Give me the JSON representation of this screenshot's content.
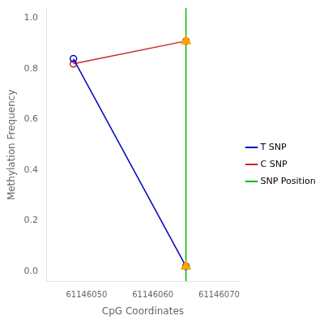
{
  "chart_data": {
    "type": "line",
    "xlabel": "CpG Coordinates",
    "ylabel": "Methylation Frequency",
    "xlim": [
      61146044,
      61146073
    ],
    "ylim": [
      -0.04,
      1.04
    ],
    "xticks": [
      61146050,
      61146060,
      61146070
    ],
    "yticks": [
      {
        "value": 0.0,
        "label": "0.0"
      },
      0.2,
      0.4,
      0.6,
      0.8,
      {
        "value": 1.0,
        "label": "1.0"
      }
    ],
    "grid": false,
    "legend": "right",
    "series": [
      {
        "name": "T SNP",
        "color": "#0000BB",
        "marker": "circle",
        "x": [
          61146048,
          61146065
        ],
        "values": [
          0.84,
          0.02
        ]
      },
      {
        "name": "C SNP",
        "color": "#CC2222",
        "marker": "circle",
        "x": [
          61146048,
          61146065
        ],
        "values": [
          0.82,
          0.91
        ]
      },
      {
        "name": "SNP Position",
        "type": "vline",
        "color": "#00BB00",
        "x": [
          61146065
        ]
      },
      {
        "type": "scatter",
        "color": "#FFA500",
        "marker": "triangle",
        "x": [
          61146065,
          61146065
        ],
        "values": [
          0.02,
          0.91
        ]
      }
    ]
  }
}
